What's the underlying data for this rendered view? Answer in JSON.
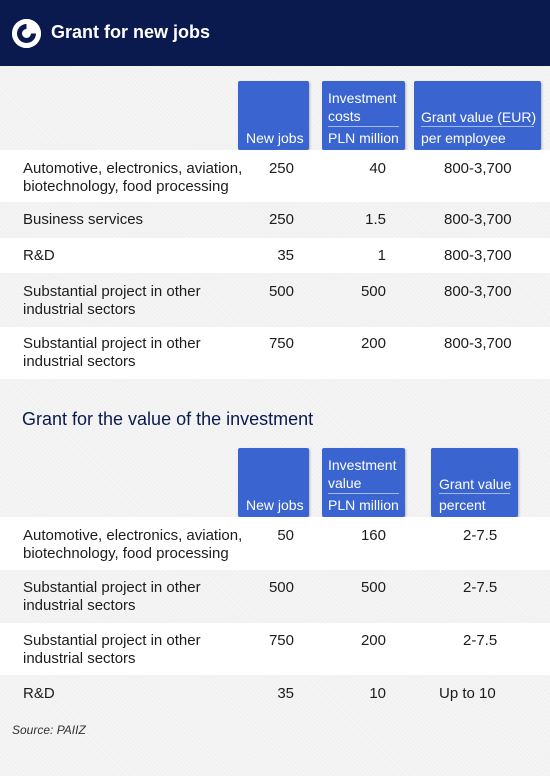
{
  "header": {
    "title": "Grant for new jobs",
    "logo": "brand-logo"
  },
  "table1": {
    "headers": [
      {
        "line1": "",
        "line2": "New jobs"
      },
      {
        "line1": "Investment costs",
        "line2": "PLN million"
      },
      {
        "line1": "Grant value (EUR)",
        "line2": "per employee"
      }
    ],
    "rows": [
      {
        "label1": "Automotive, electronics, aviation,",
        "label2": "biotechnology, food processing",
        "jobs": "250",
        "costs": "40",
        "grant": "800-3,700"
      },
      {
        "label1": "Business services",
        "label2": "",
        "jobs": "250",
        "costs": "1.5",
        "grant": "800-3,700"
      },
      {
        "label1": "R&D",
        "label2": "",
        "jobs": "35",
        "costs": "1",
        "grant": "800-3,700"
      },
      {
        "label1": "Substantial project in other",
        "label2": "industrial sectors",
        "jobs": "500",
        "costs": "500",
        "grant": "800-3,700"
      },
      {
        "label1": "Substantial project in other",
        "label2": "industrial sectors",
        "jobs": "750",
        "costs": "200",
        "grant": "800-3,700"
      }
    ]
  },
  "table2": {
    "title": "Grant for the value of the investment",
    "headers": [
      {
        "line1": "",
        "line2": "New jobs"
      },
      {
        "line1": "Investment value",
        "line2": "PLN million"
      },
      {
        "line1": "Grant value",
        "line2": "percent"
      }
    ],
    "rows": [
      {
        "label1": "Automotive, electronics, aviation,",
        "label2": "biotechnology, food processing",
        "jobs": "50",
        "value": "160",
        "grant": "2-7.5"
      },
      {
        "label1": "Substantial project in other",
        "label2": "industrial sectors",
        "jobs": "500",
        "value": "500",
        "grant": "2-7.5"
      },
      {
        "label1": "Substantial project in other",
        "label2": "industrial sectors",
        "jobs": "750",
        "value": "200",
        "grant": "2-7.5"
      },
      {
        "label1": "R&D",
        "label2": "",
        "jobs": "35",
        "value": "10",
        "grant": "Up to 10"
      }
    ]
  },
  "source": "Source: PAIIZ",
  "colors": {
    "header_bg": "#0b1a4e",
    "accent": "#3a64d0"
  }
}
